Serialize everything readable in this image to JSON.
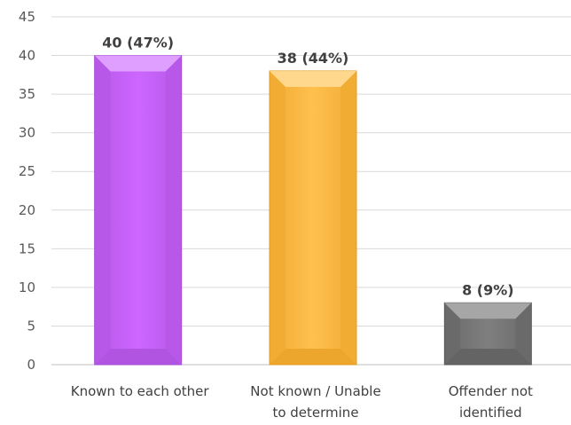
{
  "chart_data": {
    "type": "bar",
    "title": "",
    "xlabel": "",
    "ylabel": "",
    "ylim": [
      0,
      45
    ],
    "y_ticks": [
      0,
      5,
      10,
      15,
      20,
      25,
      30,
      35,
      40,
      45
    ],
    "grid": true,
    "legend": "none",
    "categories": [
      "Known to each other",
      "Not known / Unable to determine",
      "Offender not identified"
    ],
    "category_label_lines": [
      [
        "Known to each other"
      ],
      [
        "Not known / Unable",
        "to determine"
      ],
      [
        "Offender not",
        "identified"
      ]
    ],
    "values": [
      40,
      38,
      8
    ],
    "data_labels": [
      "40 (47%)",
      "38 (44%)",
      "8 (9%)"
    ],
    "bar_colors": [
      {
        "main": "#cc66ff",
        "dark": "#a64dd6",
        "light": "#e6b3ff"
      },
      {
        "main": "#ffc04d",
        "dark": "#e59b1f",
        "light": "#ffe0a3"
      },
      {
        "main": "#7f7f7f",
        "dark": "#595959",
        "light": "#b3b3b3"
      }
    ],
    "gridline_color": "#d9d9d9",
    "axis_color": "#bfbfbf"
  }
}
